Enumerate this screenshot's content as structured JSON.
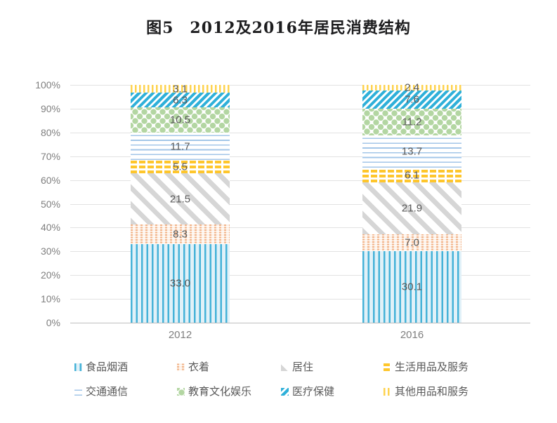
{
  "title": "图5　2012及2016年居民消费结构",
  "colors": {
    "title_text": "#1d1d1f",
    "axis_text": "#7f7f7f",
    "value_label_text": "#595959",
    "gridline": "#e2e2e2",
    "axis_line": "#bdbdbd",
    "series_palette": {
      "食品烟酒": "#45b2d8",
      "衣着": "#f2b388",
      "居住": "#d6d6d6",
      "生活用品及服务": "#fec62c",
      "交通通信": "#a3c6e8",
      "教育文化娱乐": "#b3d6a2",
      "医疗保健": "#2fb0d9",
      "其他用品和服务": "#fed34f"
    }
  },
  "chart_data": {
    "type": "bar",
    "subtype": "stacked-100-percent",
    "title": "图5　2012及2016年居民消费结构",
    "categories": [
      "2012",
      "2016"
    ],
    "series": [
      {
        "name": "食品烟酒",
        "values": [
          33.0,
          30.1
        ],
        "pattern": "vstripe-blue"
      },
      {
        "name": "衣着",
        "values": [
          8.3,
          7.0
        ],
        "pattern": "dots-orange"
      },
      {
        "name": "居住",
        "values": [
          21.5,
          21.9
        ],
        "pattern": "diag-gray"
      },
      {
        "name": "生活用品及服务",
        "values": [
          5.5,
          6.1
        ],
        "pattern": "brick-gold"
      },
      {
        "name": "交通通信",
        "values": [
          11.7,
          13.7
        ],
        "pattern": "hlines-blue"
      },
      {
        "name": "教育文化娱乐",
        "values": [
          10.5,
          11.2
        ],
        "pattern": "diamond-green"
      },
      {
        "name": "医疗保健",
        "values": [
          6.3,
          7.6
        ],
        "pattern": "hatch-blue"
      },
      {
        "name": "其他用品和服务",
        "values": [
          3.1,
          2.4
        ],
        "pattern": "vstripe-gold"
      }
    ],
    "y_ticks": [
      "0%",
      "10%",
      "20%",
      "30%",
      "40%",
      "50%",
      "60%",
      "70%",
      "80%",
      "90%",
      "100%"
    ],
    "ylim": [
      0,
      100
    ],
    "xlabel": "",
    "ylabel": "",
    "grid": true,
    "value_labels": true,
    "legend_position": "bottom"
  }
}
